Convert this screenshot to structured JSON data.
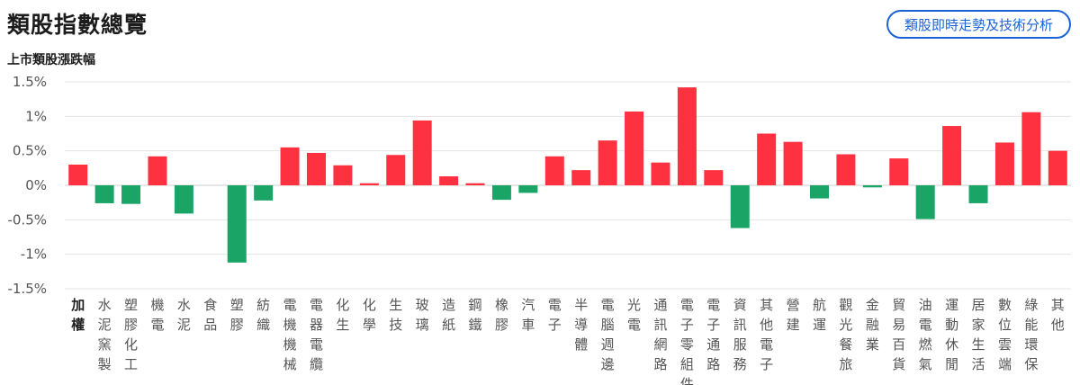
{
  "header": {
    "title": "類股指數總覽",
    "analysis_button_label": "類股即時走勢及技術分析"
  },
  "colors": {
    "up": "#fe3140",
    "down": "#1aa566",
    "grid": "#e5e5e5",
    "accent": "#1a63d6"
  },
  "chart_data": {
    "type": "bar",
    "title": "上市類股漲跌幅",
    "xlabel": "",
    "ylabel": "",
    "ylim": [
      -1.5,
      1.5
    ],
    "yticks": [
      {
        "value": 1.5,
        "label": "1.5%"
      },
      {
        "value": 1,
        "label": "1%"
      },
      {
        "value": 0.5,
        "label": "0.5%"
      },
      {
        "value": 0,
        "label": "0%"
      },
      {
        "value": -0.5,
        "label": "-0.5%"
      },
      {
        "value": -1,
        "label": "-1%"
      },
      {
        "value": -1.5,
        "label": "-1.5%"
      }
    ],
    "grid": true,
    "categories": [
      "加權",
      "水泥窯製",
      "塑膠化工",
      "機電",
      "水泥",
      "食品",
      "塑膠",
      "紡織",
      "電機機械",
      "電器電纜",
      "化生",
      "化學",
      "生技",
      "玻璃",
      "造紙",
      "鋼鐵",
      "橡膠",
      "汽車",
      "電子",
      "半導體",
      "電腦週邊",
      "光電",
      "通訊網路",
      "電子零組件",
      "電子通路",
      "資訊服務",
      "其他電子",
      "營建",
      "航運",
      "觀光餐旅",
      "金融業",
      "貿易百貨",
      "油電燃氣",
      "運動休閒",
      "居家生活",
      "數位雲端",
      "綠能環保",
      "其他"
    ],
    "values": [
      0.3,
      -0.26,
      -0.27,
      0.42,
      -0.41,
      0,
      -1.12,
      -0.22,
      0.55,
      0.47,
      0.29,
      0.03,
      0.44,
      0.94,
      0.13,
      0.03,
      -0.21,
      -0.11,
      0.42,
      0.22,
      0.65,
      1.07,
      0.33,
      1.42,
      0.22,
      -0.62,
      0.75,
      0.63,
      -0.19,
      0.45,
      -0.03,
      0.39,
      -0.49,
      0.86,
      -0.26,
      0.62,
      1.06,
      0.5
    ]
  }
}
